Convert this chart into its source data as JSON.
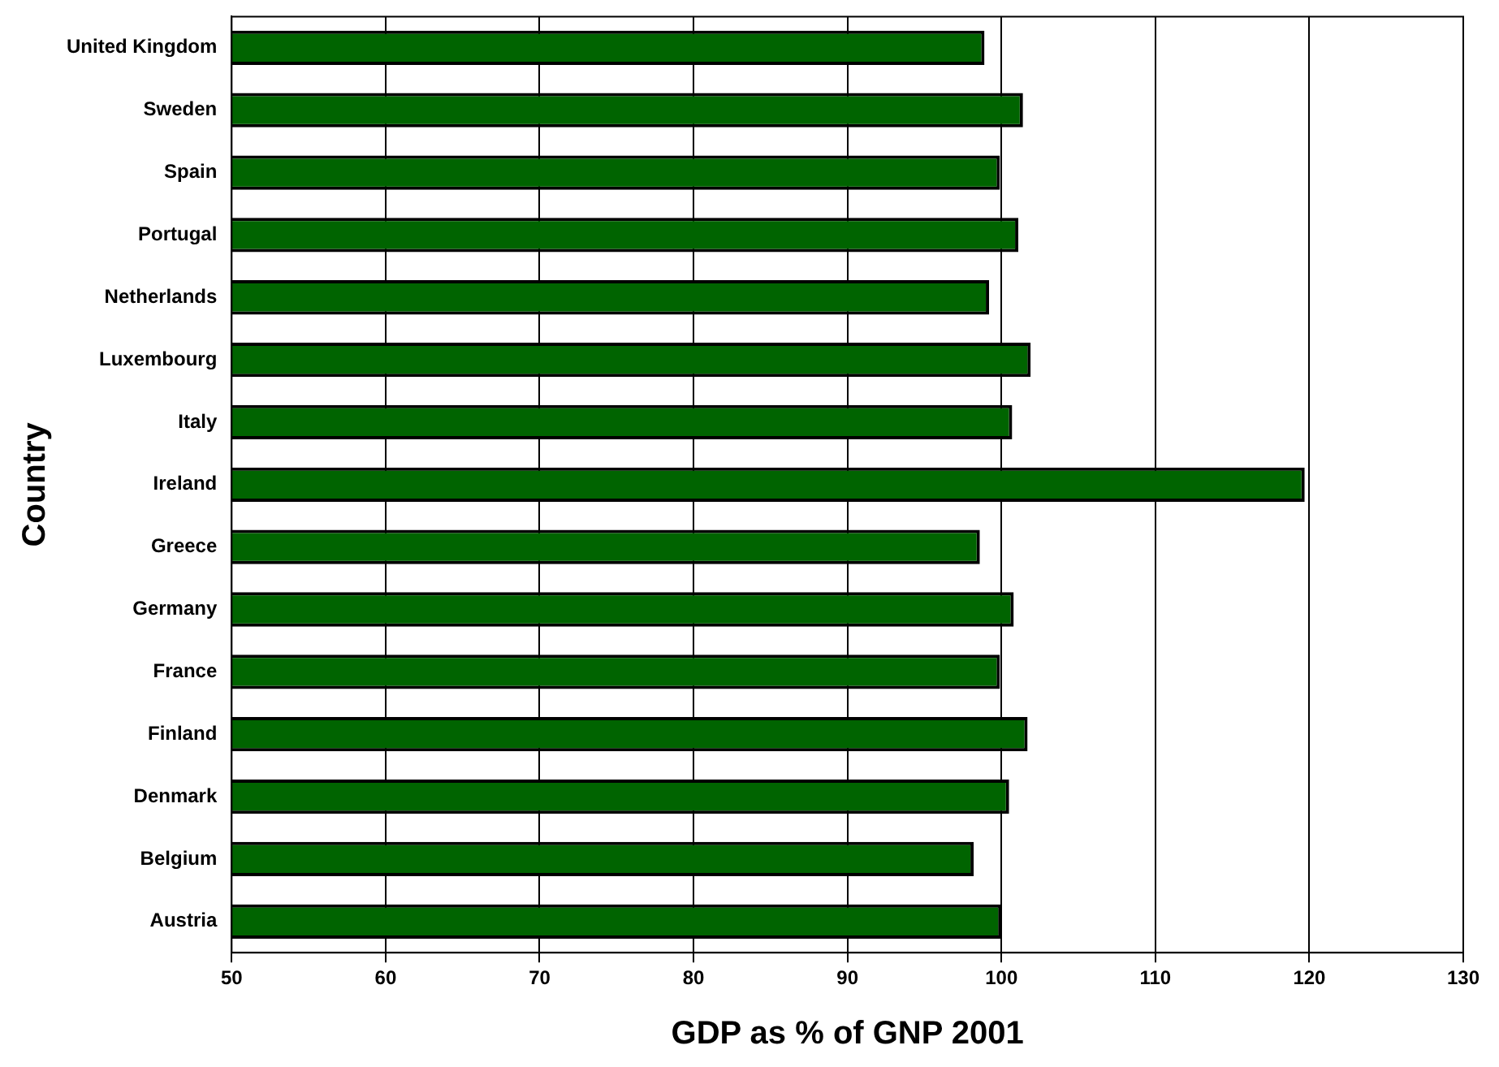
{
  "chart_data": {
    "type": "bar",
    "orientation": "horizontal",
    "xlabel": "GDP as % of GNP 2001",
    "ylabel": "Country",
    "categories": [
      "United Kingdom",
      "Sweden",
      "Spain",
      "Portugal",
      "Netherlands",
      "Luxembourg",
      "Italy",
      "Ireland",
      "Greece",
      "Germany",
      "France",
      "Finland",
      "Denmark",
      "Belgium",
      "Austria"
    ],
    "values": [
      98.9,
      101.4,
      99.9,
      101.1,
      99.2,
      101.9,
      100.7,
      119.7,
      98.6,
      100.8,
      99.9,
      101.7,
      100.5,
      98.2,
      100.0
    ],
    "color": "#006400",
    "xlim": [
      50,
      130
    ],
    "xticks": [
      50,
      60,
      70,
      80,
      90,
      100,
      110,
      120,
      130
    ],
    "grid": "x",
    "legend": false
  }
}
